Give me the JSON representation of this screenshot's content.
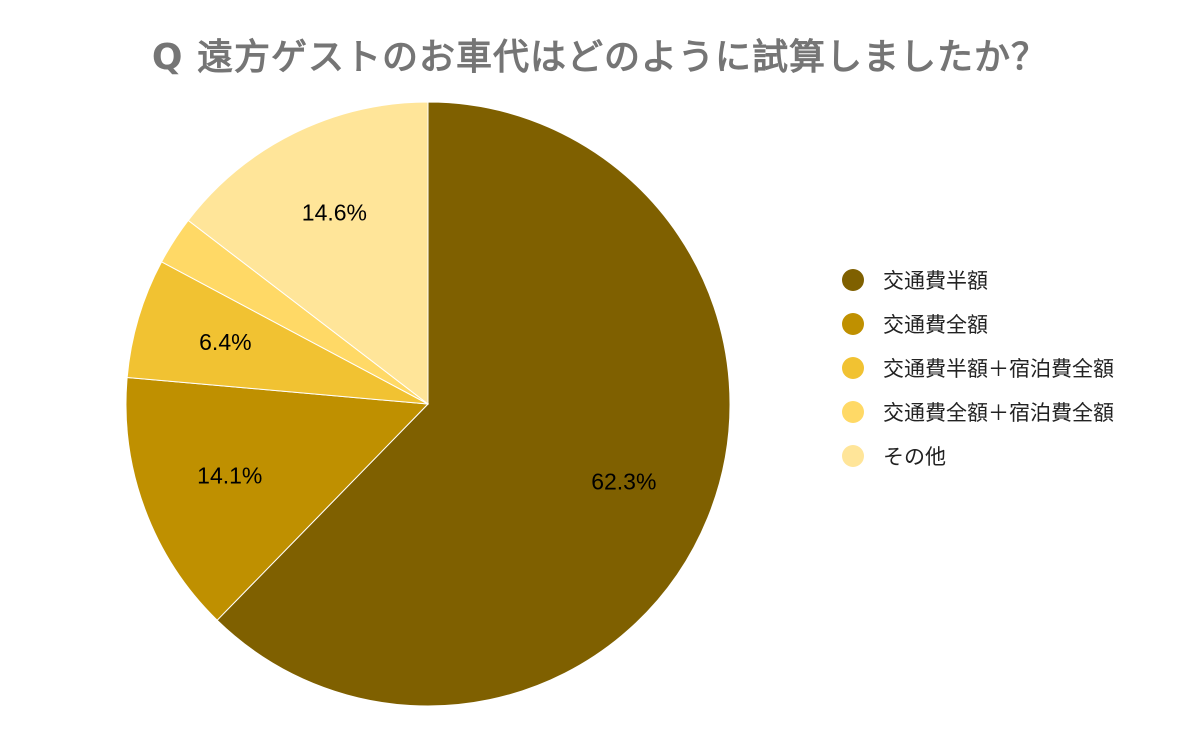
{
  "chart_data": {
    "type": "pie",
    "title": "Q 遠方ゲストのお車代はどのように試算しましたか？",
    "legend_position": "right",
    "slices": [
      {
        "name": "交通費半額",
        "value": 62.3,
        "label": "62.3%",
        "color": "#7f6000"
      },
      {
        "name": "交通費全額",
        "value": 14.1,
        "label": "14.1%",
        "color": "#bf9000"
      },
      {
        "name": "交通費半額＋宿泊費全額",
        "value": 6.4,
        "label": "6.4%",
        "color": "#f1c232"
      },
      {
        "name": "交通費全額＋宿泊費全額",
        "value": 2.6,
        "label": "",
        "color": "#ffd966"
      },
      {
        "name": "その他",
        "value": 14.6,
        "label": "14.6%",
        "color": "#ffe599"
      }
    ]
  }
}
